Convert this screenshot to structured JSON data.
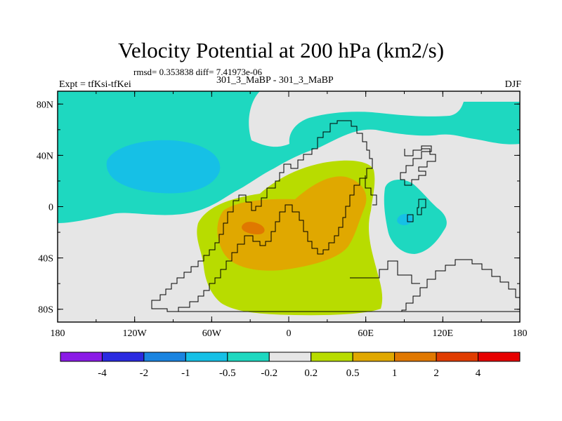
{
  "header": {
    "title": "Velocity Potential at 200 hPa (km2/s)",
    "rmsd_text": "rmsd= 0.353838  diff= 7.41973e-06",
    "expt_text": "Expt = tfKsi-tfKei",
    "case_text": "301_3_MaBP - 301_3_MaBP",
    "season": "DJF"
  },
  "chart_data": {
    "type": "filled-contour-map",
    "title": "Velocity Potential at 200 hPa (km2/s)",
    "projection": "cylindrical equidistant",
    "xlim": [
      -180,
      180
    ],
    "ylim": [
      -90,
      90
    ],
    "x_tick_values": [
      -180,
      -120,
      -60,
      0,
      60,
      120,
      180
    ],
    "x_tick_labels": [
      "180",
      "120W",
      "60W",
      "0",
      "60E",
      "120E",
      "180"
    ],
    "y_tick_values": [
      80,
      40,
      0,
      -40,
      -80
    ],
    "y_tick_labels": [
      "80N",
      "40N",
      "0",
      "40S",
      "80S"
    ],
    "colorbar": {
      "levels": [
        "-4",
        "-2",
        "-1",
        "-0.5",
        "-0.2",
        "0.2",
        "0.5",
        "1",
        "2",
        "4"
      ],
      "colors": [
        "#8a1ae6",
        "#2a2ae0",
        "#1a84e0",
        "#16c0e6",
        "#1ed8c0",
        "#e6e6e6",
        "#b8dc00",
        "#e0a800",
        "#e07800",
        "#e03c00",
        "#e60000"
      ]
    },
    "regions": [
      {
        "name": "north-cyan-band",
        "bin": "-0.5 to -0.2",
        "color": "#1ed8c0"
      },
      {
        "name": "pacific-blue-low",
        "bin": "-1 to -0.5",
        "color": "#16c0e6"
      },
      {
        "name": "indian-ocean-cyan",
        "bin": "-0.5 to -0.2",
        "color": "#1ed8c0"
      },
      {
        "name": "indian-ocean-blue-spot",
        "bin": "-1 to -0.5",
        "color": "#16c0e6"
      },
      {
        "name": "southern-green-high",
        "bin": "0.2 to 0.5",
        "color": "#b8dc00"
      },
      {
        "name": "gold-high",
        "bin": "0.5 to 1",
        "color": "#e0a800"
      },
      {
        "name": "orange-max",
        "bin": "1 to 2",
        "color": "#e07800"
      }
    ]
  }
}
